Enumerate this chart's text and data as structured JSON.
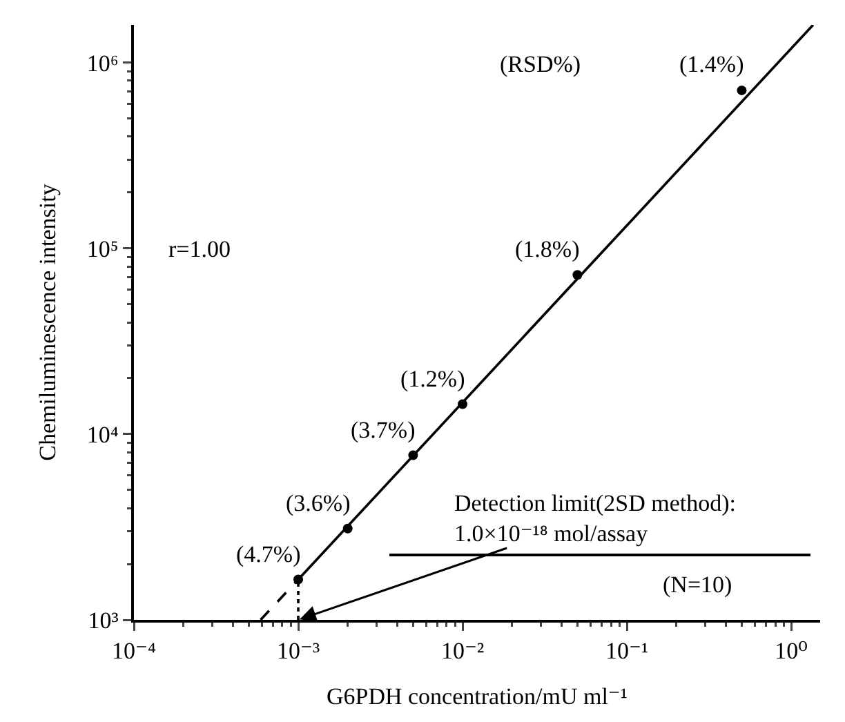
{
  "chart_data": {
    "type": "scatter",
    "xlabel": "G6PDH concentration/mU ml⁻¹",
    "ylabel": "Chemiluminescence intensity",
    "log": "xy",
    "grid": false,
    "xlim": [
      0.0001,
      1.5
    ],
    "ylim": [
      1000,
      1600000
    ],
    "xticks": [
      {
        "value": 0.0001,
        "label": "10⁻⁴"
      },
      {
        "value": 0.001,
        "label": "10⁻³"
      },
      {
        "value": 0.01,
        "label": "10⁻²"
      },
      {
        "value": 0.1,
        "label": "10⁻¹"
      },
      {
        "value": 1,
        "label": "10⁰"
      }
    ],
    "yticks": [
      {
        "value": 1000,
        "label": "10³"
      },
      {
        "value": 10000,
        "label": "10⁴"
      },
      {
        "value": 100000,
        "label": "10⁵"
      },
      {
        "value": 1000000,
        "label": "10⁶"
      }
    ],
    "series": [
      {
        "marker": "circle",
        "color": "#000000",
        "x": [
          0.001,
          0.002,
          0.005,
          0.01,
          0.05,
          0.5
        ],
        "values": [
          1650,
          3100,
          7700,
          14500,
          72000,
          710000
        ]
      },
      {
        "type": "line",
        "line_style": "solid",
        "color": "#000000",
        "x": [
          0.001,
          1.36
        ],
        "values": [
          1650,
          1600000
        ]
      },
      {
        "type": "line",
        "line_style": "dashed",
        "color": "#000000",
        "x": [
          0.00059,
          0.001
        ],
        "values": [
          1000,
          1650
        ]
      },
      {
        "type": "line",
        "line_style": "dotted",
        "color": "#000000",
        "x": [
          0.001,
          0.001
        ],
        "values": [
          1000,
          1650
        ]
      }
    ],
    "annotations": [
      "(RSD%)",
      "r=1.00",
      {
        "text": "(4.7%)",
        "x": 0.001,
        "y": 1650
      },
      {
        "text": "(3.6%)",
        "x": 0.002,
        "y": 3100
      },
      {
        "text": "(3.7%)",
        "x": 0.005,
        "y": 7700
      },
      {
        "text": "(1.2%)",
        "x": 0.01,
        "y": 14500
      },
      {
        "text": "(1.8%)",
        "x": 0.05,
        "y": 72000
      },
      {
        "text": "(1.4%)",
        "x": 0.5,
        "y": 710000
      },
      {
        "text": "Detection limit(2SD method):\n1.0×10⁻¹⁸ mol/assay",
        "x": 0.001,
        "y": 1000
      },
      "(N=10)"
    ]
  }
}
